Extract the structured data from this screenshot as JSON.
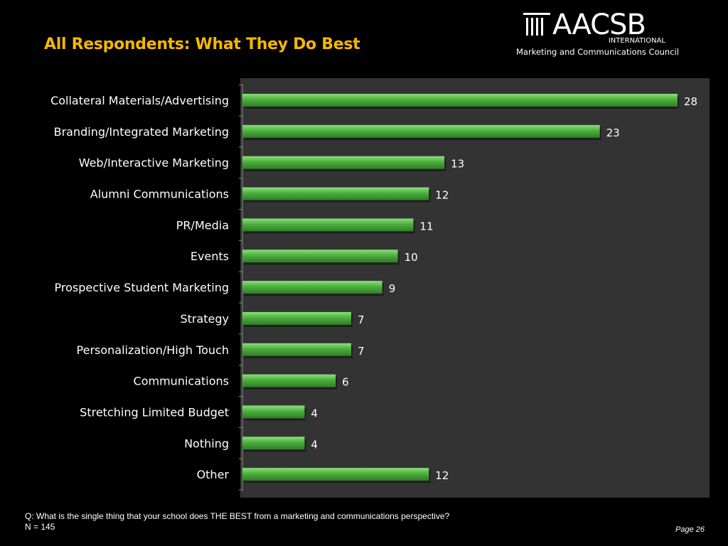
{
  "header": {
    "title": "All Respondents: What They Do Best"
  },
  "logo": {
    "name": "AACSB",
    "subtitle": "INTERNATIONAL",
    "council": "Marketing and Communications Council"
  },
  "chart_data": {
    "type": "bar",
    "orientation": "horizontal",
    "categories": [
      "Collateral Materials/Advertising",
      "Branding/Integrated Marketing",
      "Web/Interactive Marketing",
      "Alumni Communications",
      "PR/Media",
      "Events",
      "Prospective Student Marketing",
      "Strategy",
      "Personalization/High Touch",
      "Communications",
      "Stretching Limited Budget",
      "Nothing",
      "Other"
    ],
    "values": [
      28,
      23,
      13,
      12,
      11,
      10,
      9,
      7,
      7,
      6,
      4,
      4,
      12
    ],
    "xlim": [
      0,
      30
    ],
    "bar_color": "#4caf3c",
    "background_color": "#333333",
    "grid": false,
    "legend": "none"
  },
  "footer": {
    "question": "Q: What is the single thing that your school does THE BEST from a marketing and communications perspective?",
    "n": "N = 145",
    "page": "Page 26"
  }
}
